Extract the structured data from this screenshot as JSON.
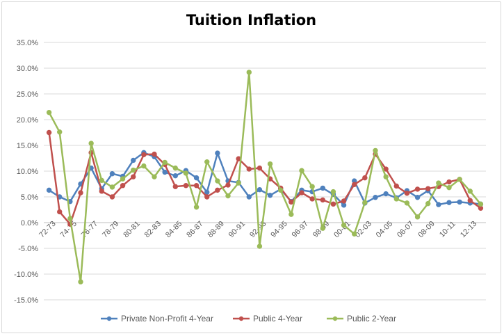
{
  "chart_data": {
    "type": "line",
    "title": "Tuition Inflation",
    "xlabel": "",
    "ylabel": "",
    "ylim": [
      -15,
      35
    ],
    "y_ticks": [
      "35.0%",
      "30.0%",
      "25.0%",
      "20.0%",
      "15.0%",
      "10.0%",
      "5.0%",
      "0.0%",
      "-5.0%",
      "-10.0%",
      "-15.0%"
    ],
    "y_tick_values": [
      35,
      30,
      25,
      20,
      15,
      10,
      5,
      0,
      -5,
      -10,
      -15
    ],
    "categories": [
      "72-73",
      "73-74",
      "74-75",
      "75-76",
      "76-77",
      "77-78",
      "78-79",
      "79-80",
      "80-81",
      "81-82",
      "82-83",
      "83-84",
      "84-85",
      "85-86",
      "86-87",
      "87-88",
      "88-89",
      "89-90",
      "90-91",
      "91-92",
      "92-93",
      "93-94",
      "94-95",
      "95-96",
      "96-97",
      "97-98",
      "98-99",
      "99-00",
      "00-01",
      "01-02",
      "02-03",
      "03-04",
      "04-05",
      "05-06",
      "06-07",
      "07-08",
      "08-09",
      "09-10",
      "10-11",
      "11-12",
      "12-13",
      "13-14"
    ],
    "x_tick_labels": [
      "72-73",
      "74-75",
      "76-77",
      "78-79",
      "80-81",
      "82-83",
      "84-85",
      "86-87",
      "88-89",
      "90-91",
      "92-93",
      "94-95",
      "96-97",
      "98-99",
      "00-01",
      "02-03",
      "04-05",
      "06-07",
      "08-09",
      "10-11",
      "12-13"
    ],
    "grid": true,
    "legend_position": "bottom",
    "series": [
      {
        "name": "Private Non-Profit 4-Year",
        "color": "#4f81bd",
        "values": [
          6.3,
          5.0,
          4.1,
          7.5,
          10.6,
          6.6,
          9.5,
          9.0,
          12.1,
          13.6,
          12.8,
          9.8,
          9.1,
          10.1,
          8.7,
          5.9,
          13.5,
          8.1,
          7.8,
          5.0,
          6.4,
          5.3,
          6.5,
          4.1,
          6.3,
          6.0,
          6.7,
          5.5,
          3.4,
          8.1,
          3.8,
          4.9,
          5.6,
          4.8,
          6.2,
          4.9,
          6.2,
          3.5,
          3.9,
          4.0,
          3.8,
          3.6
        ]
      },
      {
        "name": "Public 4-Year",
        "color": "#c0504d",
        "values": [
          17.5,
          2.1,
          -0.3,
          5.8,
          13.6,
          6.1,
          5.0,
          7.2,
          8.9,
          13.2,
          13.3,
          11.3,
          7.0,
          7.2,
          7.2,
          5.0,
          6.3,
          7.3,
          12.4,
          10.4,
          10.6,
          8.5,
          6.7,
          4.0,
          5.8,
          4.6,
          4.4,
          3.6,
          4.2,
          7.4,
          8.7,
          13.3,
          10.4,
          7.1,
          5.7,
          6.5,
          6.6,
          7.0,
          7.9,
          8.4,
          4.3,
          2.8
        ]
      },
      {
        "name": "Public 2-Year",
        "color": "#9bbb59",
        "values": [
          21.4,
          17.6,
          0.8,
          -11.5,
          15.4,
          8.2,
          6.9,
          8.5,
          10.2,
          11.0,
          8.9,
          11.7,
          10.6,
          9.6,
          3.0,
          11.8,
          8.1,
          5.2,
          7.7,
          29.2,
          -4.6,
          11.4,
          6.3,
          1.6,
          10.1,
          7.0,
          -1.1,
          6.0,
          -0.5,
          -2.2,
          3.9,
          14.0,
          8.9,
          4.6,
          3.8,
          1.1,
          3.7,
          7.7,
          6.8,
          8.4,
          6.1,
          3.6
        ]
      }
    ]
  }
}
